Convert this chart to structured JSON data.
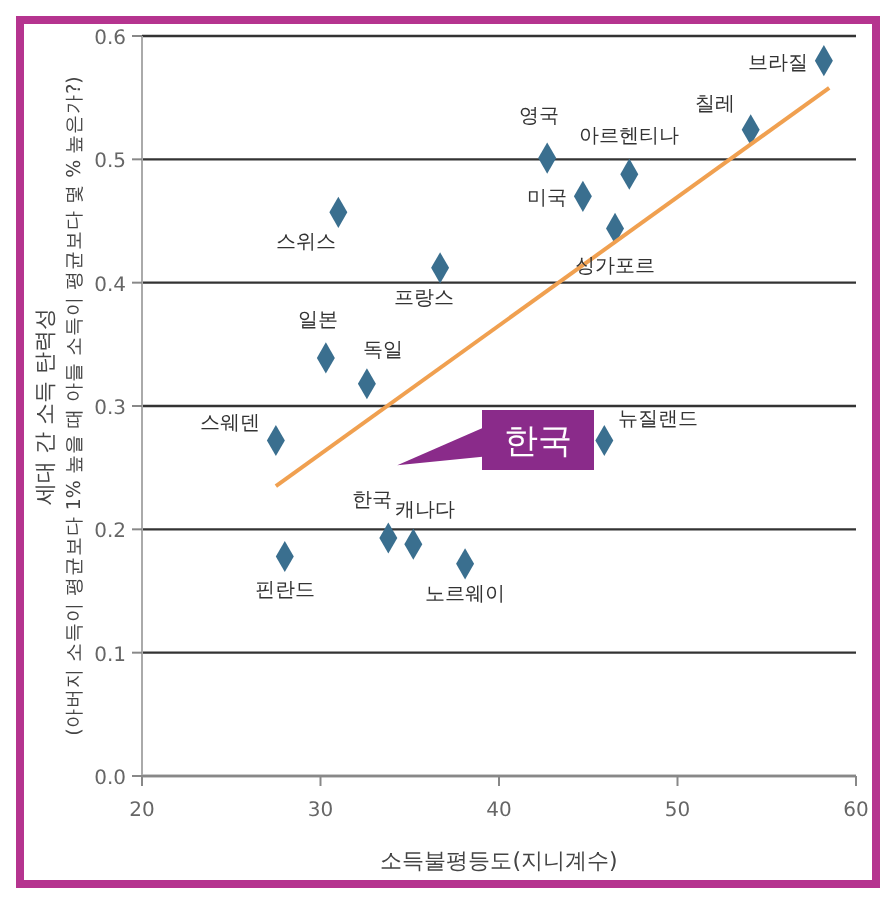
{
  "chart_data": {
    "type": "scatter",
    "xlabel": "소득불평등도(지니계수)",
    "ylabel": "세대 간 소득 탄력성\n(아버지 소득이 평균보다 1% 높을 때 아들 소득이 평균보다 몇 % 높은가?)",
    "xlim": [
      20,
      60
    ],
    "xticks": [
      20,
      30,
      40,
      50,
      60
    ],
    "ylim": [
      0,
      0.6
    ],
    "yticks": [
      {
        "value": 0,
        "label": "0.0"
      },
      0.1,
      0.2,
      0.3,
      0.4,
      0.5,
      0.6
    ],
    "grid": "y",
    "series": [
      {
        "marker": "diamond",
        "color": "#3a6f8f",
        "x": [
          58.2,
          54.1,
          42.7,
          47.3,
          44.7,
          46.5,
          31.0,
          36.7,
          30.3,
          32.6,
          27.5,
          45.9,
          33.8,
          35.2,
          38.1,
          28.0
        ],
        "values": [
          0.58,
          0.524,
          0.501,
          0.488,
          0.47,
          0.444,
          0.457,
          0.412,
          0.339,
          0.318,
          0.272,
          0.272,
          0.193,
          0.188,
          0.172,
          0.178
        ]
      },
      {
        "type": "line",
        "color": "#f0a050",
        "x": [
          27.5,
          58.5
        ],
        "values": [
          0.235,
          0.558
        ]
      }
    ],
    "annotations": [
      {
        "text": "브라질",
        "x": 58.2,
        "y": 0.58
      },
      {
        "text": "칠레",
        "x": 54.1,
        "y": 0.524
      },
      {
        "text": "영국",
        "x": 42.7,
        "y": 0.501
      },
      {
        "text": "아르헨티나",
        "x": 47.3,
        "y": 0.488
      },
      {
        "text": "미국",
        "x": 44.7,
        "y": 0.47
      },
      {
        "text": "싱가포르",
        "x": 46.5,
        "y": 0.444
      },
      {
        "text": "스위스",
        "x": 31.0,
        "y": 0.457
      },
      {
        "text": "프랑스",
        "x": 36.7,
        "y": 0.412
      },
      {
        "text": "일본",
        "x": 30.3,
        "y": 0.339
      },
      {
        "text": "독일",
        "x": 32.6,
        "y": 0.318
      },
      {
        "text": "스웨덴",
        "x": 27.5,
        "y": 0.272
      },
      {
        "text": "뉴질랜드",
        "x": 45.9,
        "y": 0.272
      },
      {
        "text": "한국",
        "x": 33.8,
        "y": 0.193
      },
      {
        "text": "캐나다",
        "x": 35.2,
        "y": 0.188
      },
      {
        "text": "노르웨이",
        "x": 38.1,
        "y": 0.172
      },
      {
        "text": "핀란드",
        "x": 28.0,
        "y": 0.178
      },
      "한국"
    ]
  }
}
